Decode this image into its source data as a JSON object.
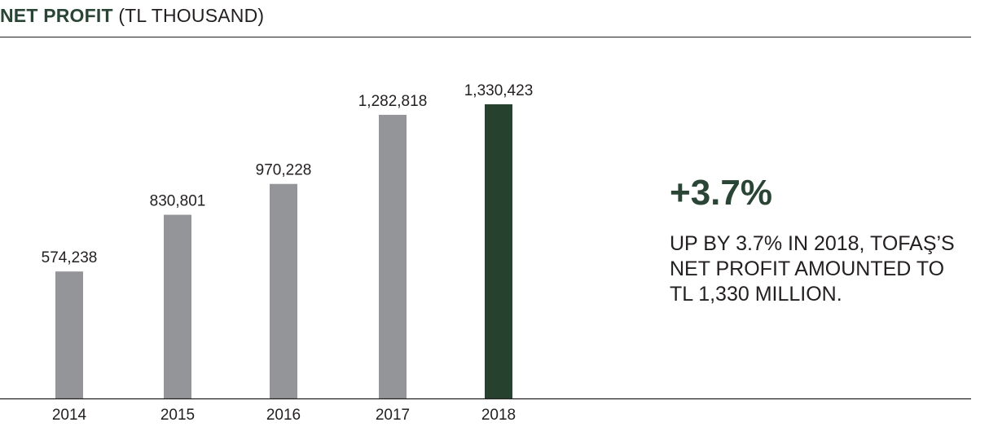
{
  "title": {
    "bold": "NET PROFIT",
    "light": "(TL THOUSAND)"
  },
  "callout": {
    "big": "+3.7%",
    "lines": [
      "UP BY 3.7% IN 2018, TOFAŞ’S",
      "NET PROFIT AMOUNTED TO",
      "TL 1,330 MILLION."
    ]
  },
  "colors": {
    "bar": "#939598",
    "highlight_bar": "#27412f",
    "text": "#231f20",
    "accent": "#2a4536"
  },
  "chart_data": {
    "type": "bar",
    "title": "NET PROFIT (TL THOUSAND)",
    "categories": [
      "2014",
      "2015",
      "2016",
      "2017",
      "2018"
    ],
    "values": [
      574238,
      830801,
      970228,
      1282818,
      1330423
    ],
    "value_labels": [
      "574,238",
      "830,801",
      "970,228",
      "1,282,818",
      "1,330,423"
    ],
    "highlight_index": 4,
    "ylim": [
      0,
      1330423
    ],
    "grid": false,
    "legend": "none",
    "xlabel": "",
    "ylabel": ""
  }
}
